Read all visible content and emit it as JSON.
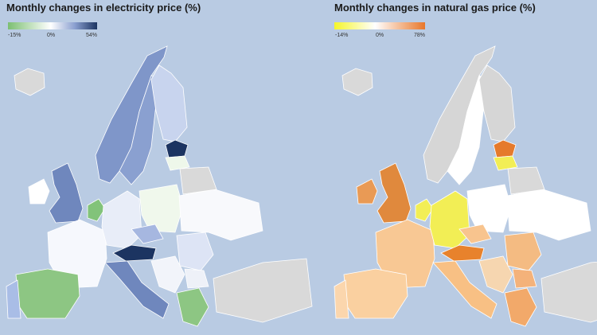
{
  "panels": [
    {
      "title": "Monthly changes in electricity price (%)",
      "legend": {
        "labels": [
          "-15%",
          "0%",
          "54%"
        ]
      }
    },
    {
      "title": "Monthly changes in natural gas price (%)",
      "legend": {
        "labels": [
          "-14%",
          "0%",
          "78%"
        ]
      }
    }
  ]
}
